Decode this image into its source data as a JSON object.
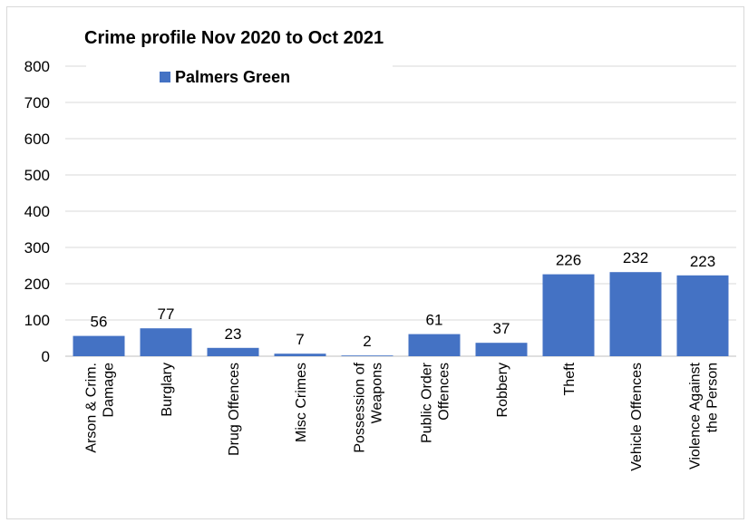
{
  "chart_data": {
    "type": "bar",
    "title": "Crime profile Nov 2020 to Oct 2021",
    "categories": [
      [
        "Arson & Crim.",
        "Damage"
      ],
      [
        "Burglary"
      ],
      [
        "Drug Offences"
      ],
      [
        "Misc Crimes"
      ],
      [
        "Possession of",
        "Weapons"
      ],
      [
        "Public Order",
        "Offences"
      ],
      [
        "Robbery"
      ],
      [
        "Theft"
      ],
      [
        "Vehicle Offences"
      ],
      [
        "Violence Against",
        "the Person"
      ]
    ],
    "series": [
      {
        "name": "Palmers Green",
        "color": "#4472c4",
        "values": [
          56,
          77,
          23,
          7,
          2,
          61,
          37,
          226,
          232,
          223
        ]
      }
    ],
    "ylim": [
      0,
      800
    ],
    "yticks": [
      "0",
      "100",
      "200",
      "300",
      "400",
      "500",
      "600",
      "700",
      "800"
    ],
    "grid": true,
    "legend": "top-left",
    "xlabel": "",
    "ylabel": ""
  }
}
